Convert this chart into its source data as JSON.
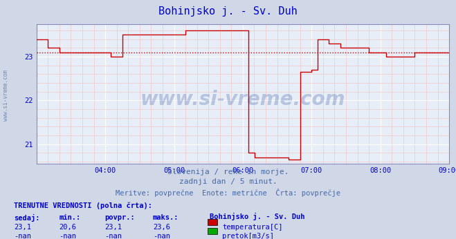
{
  "title": "Bohinjsko j. - Sv. Duh",
  "title_color": "#0000cc",
  "bg_color": "#d0d8e8",
  "plot_bg_color": "#e8eef8",
  "grid_major_color": "#ffffff",
  "grid_minor_color": "#f0c8c8",
  "xlim": [
    3.0,
    9.0
  ],
  "ylim": [
    20.55,
    23.75
  ],
  "yticks": [
    21,
    22,
    23
  ],
  "xtick_labels": [
    "04:00",
    "05:00",
    "06:00",
    "07:00",
    "08:00",
    "09:00"
  ],
  "xtick_positions": [
    4,
    5,
    6,
    7,
    8,
    9
  ],
  "avg_line_value": 23.1,
  "avg_line_color": "#cc0000",
  "line_color": "#cc0000",
  "watermark_text": "www.si-vreme.com",
  "watermark_color": "#4466aa",
  "watermark_alpha": 0.3,
  "subtitle1": "Slovenija / reke in morje.",
  "subtitle2": "zadnji dan / 5 minut.",
  "subtitle3": "Meritve: povprečne  Enote: metrične  Črta: povprečje",
  "subtitle_color": "#4466aa",
  "table_title": "TRENUTNE VREDNOSTI (polna črta):",
  "col_headers": [
    "sedaj:",
    "min.:",
    "povpr.:",
    "maks.:"
  ],
  "row1_vals": [
    "23,1",
    "20,6",
    "23,1",
    "23,6"
  ],
  "row2_vals": [
    "-nan",
    "-nan",
    "-nan",
    "-nan"
  ],
  "legend1_label": "temperatura[C]",
  "legend1_color": "#cc0000",
  "legend2_label": "pretok[m3/s]",
  "legend2_color": "#00aa00",
  "station_label": "Bohinjsko j. - Sv. Duh",
  "text_color": "#0000cc",
  "spine_color": "#8888bb",
  "times": [
    3.0,
    3.083,
    3.167,
    3.333,
    3.417,
    4.083,
    4.167,
    4.25,
    4.333,
    4.417,
    4.5,
    4.583,
    4.667,
    4.75,
    4.833,
    4.917,
    5.0,
    5.083,
    5.167,
    5.25,
    5.333,
    5.417,
    5.5,
    5.583,
    5.667,
    5.75,
    5.833,
    5.917,
    5.9167,
    6.0,
    6.083,
    6.167,
    6.25,
    6.333,
    6.417,
    6.5,
    6.583,
    6.667,
    6.75,
    6.833,
    6.917,
    7.0,
    7.083,
    7.167,
    7.25,
    7.333,
    7.417,
    7.5,
    7.583,
    7.667,
    7.75,
    7.833,
    7.917,
    8.0,
    8.083,
    8.167,
    8.25,
    8.333,
    8.417,
    8.5,
    8.583,
    8.667,
    8.75,
    8.833,
    8.917,
    9.0
  ],
  "values": [
    23.4,
    23.4,
    23.2,
    23.1,
    23.1,
    23.0,
    23.0,
    23.5,
    23.5,
    23.5,
    23.5,
    23.5,
    23.5,
    23.5,
    23.5,
    23.5,
    23.5,
    23.5,
    23.6,
    23.6,
    23.6,
    23.6,
    23.6,
    23.6,
    23.6,
    23.6,
    23.6,
    23.6,
    23.6,
    23.6,
    20.8,
    20.7,
    20.7,
    20.7,
    20.7,
    20.7,
    20.7,
    20.65,
    20.65,
    22.65,
    22.65,
    22.7,
    23.4,
    23.4,
    23.3,
    23.3,
    23.2,
    23.2,
    23.2,
    23.2,
    23.2,
    23.1,
    23.1,
    23.1,
    23.0,
    23.0,
    23.0,
    23.0,
    23.0,
    23.1,
    23.1,
    23.1,
    23.1,
    23.1,
    23.1,
    23.1
  ]
}
